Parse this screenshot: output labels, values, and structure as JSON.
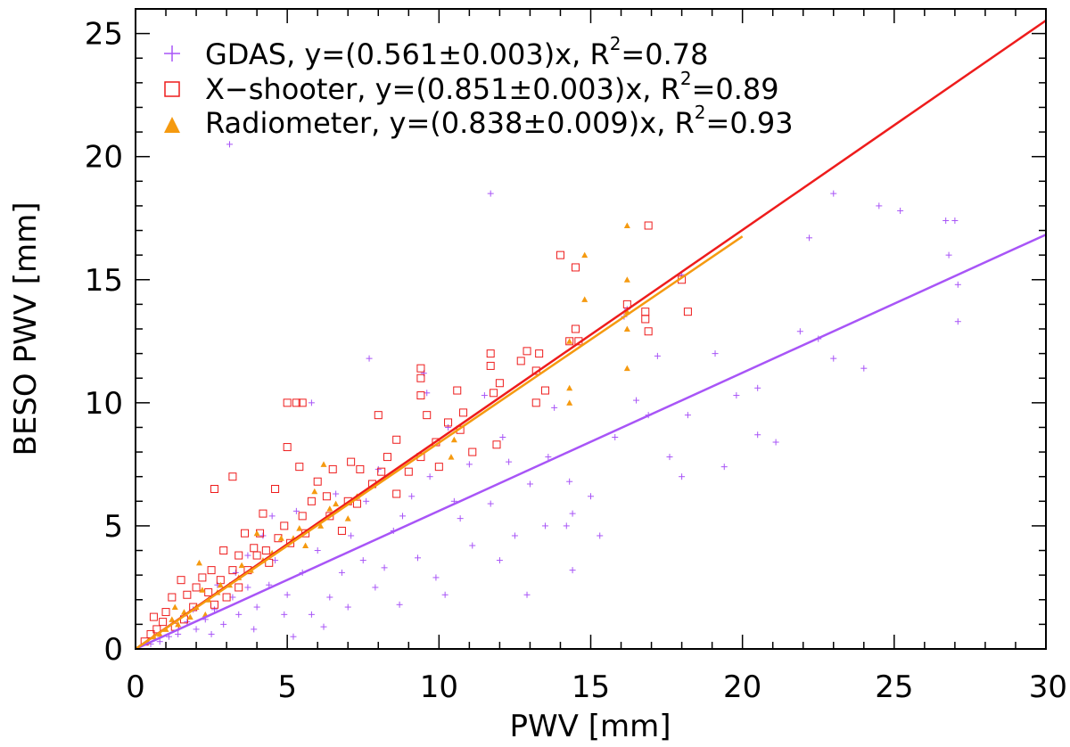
{
  "chart_data": {
    "type": "scatter",
    "title": "",
    "xlabel": "PWV [mm]",
    "ylabel": "BESO PWV [mm]",
    "xlim": [
      0,
      30
    ],
    "ylim": [
      0,
      26
    ],
    "xticks": [
      "0",
      "5",
      "10",
      "15",
      "20",
      "25",
      "30"
    ],
    "yticks": [
      "0",
      "5",
      "10",
      "15",
      "20",
      "25"
    ],
    "grid": false,
    "legend_position": "top-left",
    "series": [
      {
        "name": "GDAS",
        "legend_text": "GDAS, y=(0.561±0.003)x, R",
        "legend_r2": "=0.78",
        "marker": "plus",
        "color": "#a855f7",
        "fit_slope": 0.561,
        "points": [
          [
            3.1,
            20.5
          ],
          [
            11.7,
            18.5
          ],
          [
            23.0,
            18.5
          ],
          [
            24.5,
            18.0
          ],
          [
            25.2,
            17.8
          ],
          [
            26.7,
            17.4
          ],
          [
            27.0,
            17.4
          ],
          [
            22.2,
            16.7
          ],
          [
            26.8,
            16.0
          ],
          [
            18.0,
            15.2
          ],
          [
            27.1,
            14.8
          ],
          [
            27.1,
            13.3
          ],
          [
            21.9,
            12.9
          ],
          [
            22.5,
            12.6
          ],
          [
            17.2,
            11.9
          ],
          [
            19.1,
            12.0
          ],
          [
            23.0,
            11.8
          ],
          [
            24.0,
            11.4
          ],
          [
            20.5,
            10.6
          ],
          [
            19.8,
            10.3
          ],
          [
            16.5,
            10.1
          ],
          [
            16.9,
            9.5
          ],
          [
            18.2,
            9.5
          ],
          [
            15.8,
            8.6
          ],
          [
            21.1,
            8.4
          ],
          [
            17.6,
            7.8
          ],
          [
            18.0,
            7.0
          ],
          [
            13.6,
            7.8
          ],
          [
            14.3,
            6.8
          ],
          [
            15.0,
            6.2
          ],
          [
            14.4,
            5.5
          ],
          [
            14.2,
            5.0
          ],
          [
            15.3,
            4.6
          ],
          [
            14.4,
            3.2
          ],
          [
            12.9,
            2.2
          ],
          [
            7.7,
            11.8
          ],
          [
            5.8,
            10.0
          ],
          [
            9.5,
            11.2
          ],
          [
            9.6,
            10.4
          ],
          [
            11.5,
            10.3
          ],
          [
            10.3,
            9.0
          ],
          [
            12.1,
            8.6
          ],
          [
            12.3,
            7.6
          ],
          [
            13.0,
            6.7
          ],
          [
            11.7,
            5.9
          ],
          [
            12.5,
            4.6
          ],
          [
            11.1,
            4.2
          ],
          [
            10.7,
            5.3
          ],
          [
            9.1,
            6.2
          ],
          [
            9.7,
            7.0
          ],
          [
            8.8,
            5.4
          ],
          [
            9.3,
            3.7
          ],
          [
            9.9,
            2.9
          ],
          [
            10.2,
            2.2
          ],
          [
            8.2,
            3.3
          ],
          [
            8.5,
            4.8
          ],
          [
            7.6,
            6.0
          ],
          [
            7.1,
            4.6
          ],
          [
            7.5,
            3.6
          ],
          [
            7.9,
            2.5
          ],
          [
            8.7,
            1.8
          ],
          [
            6.8,
            3.1
          ],
          [
            6.4,
            2.1
          ],
          [
            6.0,
            4.0
          ],
          [
            5.5,
            3.1
          ],
          [
            5.0,
            2.2
          ],
          [
            5.8,
            1.4
          ],
          [
            4.6,
            3.6
          ],
          [
            4.4,
            2.6
          ],
          [
            4.0,
            1.7
          ],
          [
            3.7,
            2.5
          ],
          [
            3.4,
            1.4
          ],
          [
            3.2,
            2.1
          ],
          [
            2.9,
            1.0
          ],
          [
            2.6,
            1.6
          ],
          [
            2.3,
            1.2
          ],
          [
            2.0,
            0.8
          ],
          [
            1.7,
            1.1
          ],
          [
            1.4,
            0.6
          ],
          [
            1.1,
            0.5
          ],
          [
            0.8,
            0.3
          ],
          [
            0.5,
            0.2
          ],
          [
            5.2,
            0.5
          ],
          [
            6.2,
            0.9
          ],
          [
            4.9,
            1.4
          ],
          [
            7.0,
            1.7
          ],
          [
            3.3,
            3.1
          ],
          [
            4.2,
            4.6
          ],
          [
            5.3,
            5.6
          ],
          [
            6.6,
            6.3
          ],
          [
            8.0,
            7.3
          ],
          [
            3.7,
            3.8
          ],
          [
            2.7,
            2.6
          ],
          [
            16.2,
            13.8
          ],
          [
            16.1,
            13.5
          ],
          [
            13.8,
            9.8
          ],
          [
            20.5,
            8.7
          ],
          [
            19.4,
            7.4
          ],
          [
            11.0,
            7.5
          ],
          [
            10.5,
            6.0
          ],
          [
            13.5,
            5.0
          ],
          [
            12.0,
            3.6
          ],
          [
            2.5,
            0.6
          ],
          [
            3.9,
            0.8
          ],
          [
            1.9,
            1.6
          ],
          [
            4.5,
            5.4
          ]
        ]
      },
      {
        "name": "X-shooter",
        "legend_text": "X−shooter, y=(0.851±0.003)x, R",
        "legend_r2": "=0.89",
        "marker": "square",
        "color": "#ee1c1c",
        "fit_slope": 0.851,
        "points": [
          [
            16.9,
            17.2
          ],
          [
            14.0,
            16.0
          ],
          [
            14.5,
            15.5
          ],
          [
            18.0,
            15.0
          ],
          [
            16.2,
            14.0
          ],
          [
            16.8,
            13.7
          ],
          [
            16.8,
            13.4
          ],
          [
            18.2,
            13.7
          ],
          [
            14.5,
            13.0
          ],
          [
            16.9,
            12.9
          ],
          [
            14.3,
            12.5
          ],
          [
            14.6,
            12.5
          ],
          [
            11.7,
            12.0
          ],
          [
            12.9,
            12.1
          ],
          [
            13.3,
            12.0
          ],
          [
            13.2,
            11.3
          ],
          [
            11.7,
            11.5
          ],
          [
            9.4,
            11.4
          ],
          [
            9.4,
            11.0
          ],
          [
            13.5,
            10.5
          ],
          [
            10.6,
            10.5
          ],
          [
            11.8,
            10.4
          ],
          [
            9.4,
            10.3
          ],
          [
            13.2,
            10.0
          ],
          [
            5.0,
            10.0
          ],
          [
            5.3,
            10.0
          ],
          [
            5.5,
            10.0
          ],
          [
            8.0,
            9.5
          ],
          [
            9.6,
            9.5
          ],
          [
            10.3,
            9.2
          ],
          [
            10.7,
            8.9
          ],
          [
            11.9,
            8.3
          ],
          [
            11.1,
            8.0
          ],
          [
            8.6,
            8.5
          ],
          [
            8.3,
            7.8
          ],
          [
            9.4,
            7.8
          ],
          [
            10.0,
            7.4
          ],
          [
            7.1,
            7.6
          ],
          [
            7.4,
            7.3
          ],
          [
            6.5,
            7.3
          ],
          [
            5.0,
            8.2
          ],
          [
            4.6,
            6.5
          ],
          [
            3.2,
            7.0
          ],
          [
            2.6,
            6.5
          ],
          [
            6.0,
            6.8
          ],
          [
            6.3,
            6.2
          ],
          [
            7.0,
            6.0
          ],
          [
            8.1,
            7.2
          ],
          [
            5.5,
            5.4
          ],
          [
            4.9,
            5.0
          ],
          [
            4.7,
            4.5
          ],
          [
            4.1,
            4.7
          ],
          [
            3.4,
            3.8
          ],
          [
            3.9,
            4.1
          ],
          [
            4.4,
            3.5
          ],
          [
            3.2,
            3.2
          ],
          [
            2.8,
            2.8
          ],
          [
            2.5,
            3.2
          ],
          [
            2.2,
            2.9
          ],
          [
            2.0,
            2.5
          ],
          [
            1.7,
            2.2
          ],
          [
            1.5,
            2.8
          ],
          [
            1.2,
            2.1
          ],
          [
            1.0,
            1.5
          ],
          [
            0.9,
            1.1
          ],
          [
            0.7,
            0.8
          ],
          [
            0.5,
            0.6
          ],
          [
            0.3,
            0.3
          ],
          [
            1.3,
            0.9
          ],
          [
            2.6,
            1.8
          ],
          [
            2.9,
            4.0
          ],
          [
            3.4,
            2.5
          ],
          [
            3.7,
            3.2
          ],
          [
            4.0,
            3.8
          ],
          [
            5.6,
            4.7
          ],
          [
            6.4,
            5.4
          ],
          [
            6.8,
            4.8
          ],
          [
            7.3,
            5.9
          ],
          [
            7.8,
            6.7
          ],
          [
            8.6,
            6.3
          ],
          [
            9.0,
            7.2
          ],
          [
            9.9,
            8.4
          ],
          [
            10.8,
            9.6
          ],
          [
            12.0,
            10.8
          ],
          [
            12.7,
            11.7
          ],
          [
            3.0,
            2.1
          ],
          [
            1.9,
            1.7
          ],
          [
            2.4,
            2.3
          ],
          [
            4.3,
            4.0
          ],
          [
            5.1,
            4.3
          ],
          [
            5.8,
            6.0
          ],
          [
            3.6,
            4.7
          ],
          [
            5.4,
            7.4
          ],
          [
            4.2,
            5.5
          ],
          [
            1.6,
            1.2
          ],
          [
            0.6,
            1.3
          ]
        ]
      },
      {
        "name": "Radiometer",
        "legend_text": "Radiometer, y=(0.838±0.009)x, R",
        "legend_r2": "=0.93",
        "marker": "triangle",
        "color": "#f59a10",
        "fit_slope": 0.838,
        "fit_xmax": 20,
        "points": [
          [
            16.2,
            17.2
          ],
          [
            14.8,
            16.0
          ],
          [
            16.2,
            15.0
          ],
          [
            14.8,
            14.2
          ],
          [
            16.2,
            13.7
          ],
          [
            16.2,
            13.0
          ],
          [
            14.3,
            12.5
          ],
          [
            16.2,
            11.4
          ],
          [
            14.3,
            10.6
          ],
          [
            14.3,
            10.0
          ],
          [
            10.5,
            8.5
          ],
          [
            10.4,
            7.8
          ],
          [
            7.3,
            6.2
          ],
          [
            7.0,
            5.3
          ],
          [
            6.2,
            7.5
          ],
          [
            6.4,
            5.7
          ],
          [
            6.1,
            5.0
          ],
          [
            5.4,
            4.9
          ],
          [
            5.6,
            4.2
          ],
          [
            4.8,
            4.5
          ],
          [
            4.2,
            3.6
          ],
          [
            3.8,
            3.2
          ],
          [
            3.4,
            2.9
          ],
          [
            3.1,
            2.6
          ],
          [
            2.7,
            2.3
          ],
          [
            2.4,
            2.0
          ],
          [
            2.2,
            2.4
          ],
          [
            2.0,
            1.7
          ],
          [
            1.8,
            1.3
          ],
          [
            1.6,
            1.5
          ],
          [
            1.4,
            1.0
          ],
          [
            1.2,
            1.2
          ],
          [
            1.0,
            0.8
          ],
          [
            0.8,
            0.6
          ],
          [
            0.6,
            0.5
          ],
          [
            0.4,
            0.3
          ],
          [
            2.3,
            1.4
          ],
          [
            2.8,
            2.6
          ],
          [
            3.5,
            3.4
          ],
          [
            4.5,
            3.9
          ],
          [
            5.2,
            4.5
          ],
          [
            6.6,
            5.9
          ],
          [
            5.9,
            6.4
          ],
          [
            4.0,
            4.7
          ],
          [
            2.1,
            3.5
          ],
          [
            1.3,
            1.7
          ]
        ]
      }
    ]
  }
}
